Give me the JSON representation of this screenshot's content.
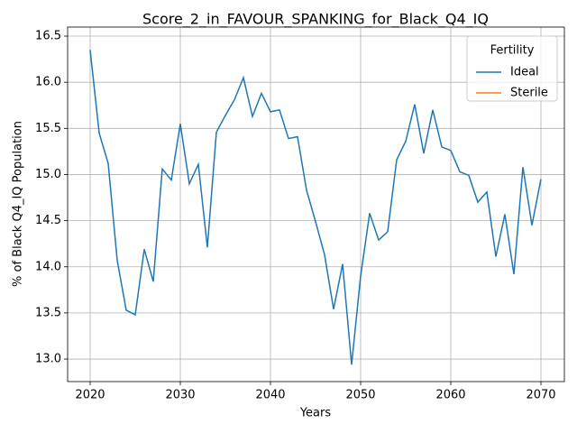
{
  "chart_data": {
    "type": "line",
    "title": "Score_2_in_FAVOUR_SPANKING_for_Black_Q4_IQ",
    "xlabel": "Years",
    "ylabel": "% of Black Q4_IQ Population",
    "legend_title": "Fertility",
    "legend": "upper right",
    "grid": true,
    "x": [
      2020,
      2021,
      2022,
      2023,
      2024,
      2025,
      2026,
      2027,
      2028,
      2029,
      2030,
      2031,
      2032,
      2033,
      2034,
      2035,
      2036,
      2037,
      2038,
      2039,
      2040,
      2041,
      2042,
      2043,
      2044,
      2045,
      2046,
      2047,
      2048,
      2049,
      2050,
      2051,
      2052,
      2053,
      2054,
      2055,
      2056,
      2057,
      2058,
      2059,
      2060,
      2061,
      2062,
      2063,
      2064,
      2065,
      2066,
      2067,
      2068,
      2069,
      2070
    ],
    "series": [
      {
        "name": "Ideal",
        "color": "#1f77b4",
        "values": [
          16.35,
          15.45,
          15.12,
          14.07,
          13.53,
          13.48,
          14.19,
          13.84,
          15.06,
          14.94,
          15.55,
          14.9,
          15.11,
          14.21,
          15.46,
          15.64,
          15.81,
          16.05,
          15.63,
          15.88,
          15.68,
          15.7,
          15.39,
          15.41,
          14.83,
          14.49,
          14.13,
          13.54,
          14.03,
          12.94,
          13.9,
          14.58,
          14.29,
          14.38,
          15.16,
          15.36,
          15.76,
          15.23,
          15.7,
          15.3,
          15.26,
          15.03,
          14.99,
          14.7,
          14.81,
          14.11,
          14.57,
          13.92,
          15.08,
          14.45,
          14.95
        ]
      },
      {
        "name": "Sterile",
        "color": "#ff7f0e",
        "values": [
          null,
          null,
          null,
          null,
          null,
          null,
          null,
          null,
          null,
          null,
          null,
          null,
          null,
          null,
          null,
          null,
          null,
          null,
          null,
          null,
          null,
          null,
          null,
          null,
          null,
          null,
          null,
          null,
          null,
          null,
          null,
          null,
          null,
          null,
          null,
          null,
          null,
          null,
          null,
          null,
          null,
          null,
          null,
          null,
          null,
          null,
          null,
          null,
          null,
          null,
          null
        ]
      }
    ],
    "xlim": [
      2017.5,
      2072.6
    ],
    "xticks": [
      2020,
      2030,
      2040,
      2050,
      2060,
      2070
    ],
    "ylim": [
      12.756,
      16.598
    ],
    "yticks": [
      {
        "value": 13,
        "label": "13.0"
      },
      13.5,
      {
        "value": 14,
        "label": "14.0"
      },
      14.5,
      {
        "value": 15,
        "label": "15.0"
      },
      15.5,
      {
        "value": 16,
        "label": "16.0"
      },
      16.5
    ]
  }
}
